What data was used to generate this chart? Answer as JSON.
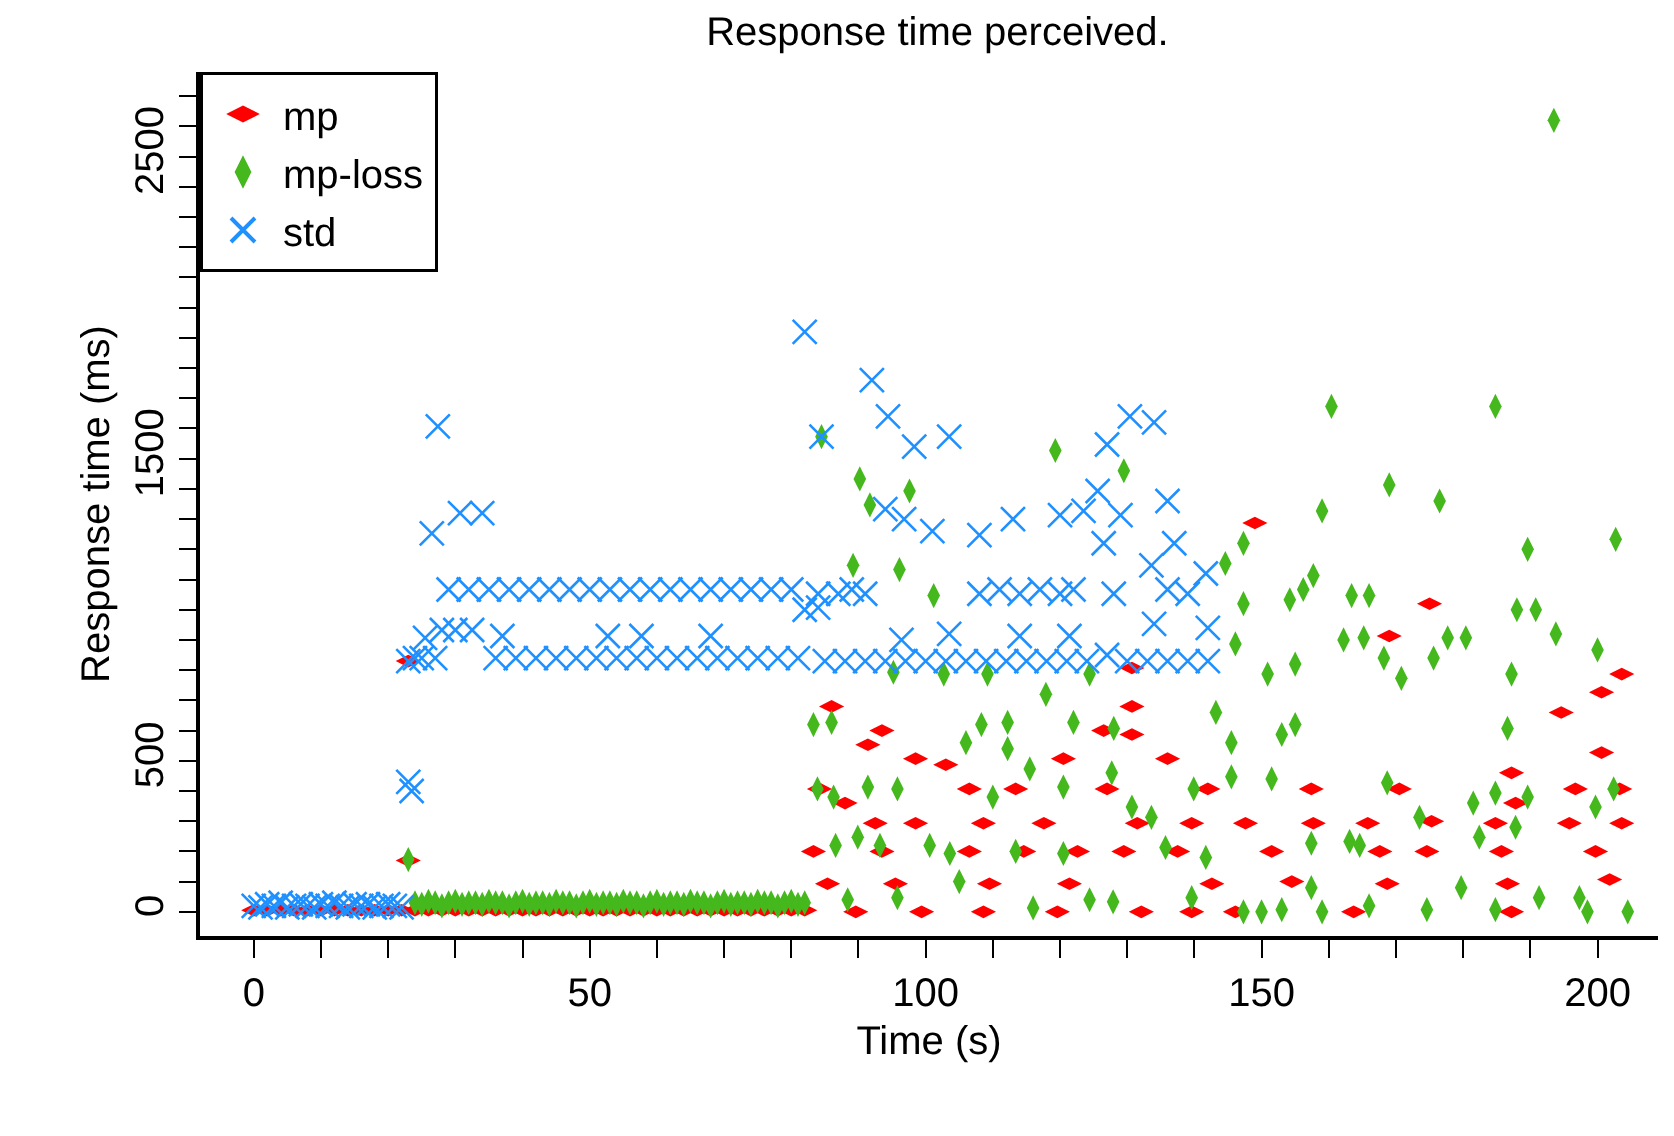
{
  "chart_data": {
    "type": "scatter",
    "title": "Response time perceived.",
    "xlabel": "Time (s)",
    "ylabel": "Response time (ms)",
    "xlim": [
      -8,
      209
    ],
    "ylim": [
      -80,
      2780
    ],
    "xticks": [
      0,
      {
        "value": 10,
        "label": null
      },
      {
        "value": 20,
        "label": null
      },
      {
        "value": 30,
        "label": null
      },
      {
        "value": 40,
        "label": null
      },
      50,
      {
        "value": 60,
        "label": null
      },
      {
        "value": 70,
        "label": null
      },
      {
        "value": 80,
        "label": null
      },
      {
        "value": 90,
        "label": null
      },
      100,
      {
        "value": 110,
        "label": null
      },
      {
        "value": 120,
        "label": null
      },
      {
        "value": 130,
        "label": null
      },
      {
        "value": 140,
        "label": null
      },
      150,
      {
        "value": 160,
        "label": null
      },
      {
        "value": 170,
        "label": null
      },
      {
        "value": 180,
        "label": null
      },
      {
        "value": 190,
        "label": null
      },
      200
    ],
    "yticks": [
      0,
      {
        "value": 100,
        "label": null
      },
      {
        "value": 200,
        "label": null
      },
      {
        "value": 300,
        "label": null
      },
      {
        "value": 400,
        "label": null
      },
      500,
      {
        "value": 600,
        "label": null
      },
      {
        "value": 700,
        "label": null
      },
      {
        "value": 800,
        "label": null
      },
      {
        "value": 900,
        "label": null
      },
      {
        "value": 1000,
        "label": null
      },
      {
        "value": 1100,
        "label": null
      },
      {
        "value": 1200,
        "label": null
      },
      {
        "value": 1300,
        "label": null
      },
      {
        "value": 1400,
        "label": null
      },
      1500,
      {
        "value": 1600,
        "label": null
      },
      {
        "value": 1700,
        "label": null
      },
      {
        "value": 1800,
        "label": null
      },
      {
        "value": 1900,
        "label": null
      },
      {
        "value": 2000,
        "label": null
      },
      {
        "value": 2100,
        "label": null
      },
      {
        "value": 2200,
        "label": null
      },
      {
        "value": 2300,
        "label": null
      },
      {
        "value": 2400,
        "label": null
      },
      2500,
      {
        "value": 2600,
        "label": null
      },
      {
        "value": 2700,
        "label": null
      }
    ],
    "legend": "top left",
    "series": [
      {
        "name": "mp",
        "color": "#ff0000",
        "marker": "diamond",
        "x": [
          0,
          2,
          4,
          6,
          8,
          10,
          12,
          14,
          16,
          18,
          20,
          22,
          23,
          23,
          24,
          26,
          28,
          30,
          32,
          34,
          36,
          38,
          40,
          42,
          44,
          46,
          48,
          50,
          52,
          54,
          56,
          58,
          60,
          62,
          64,
          66,
          68,
          70,
          72,
          74,
          76,
          78,
          80,
          82,
          149,
          175,
          169,
          130.7,
          203.6,
          200.6,
          194.6,
          200.6,
          86,
          93.5,
          91.4,
          130.7,
          130.7,
          126.5,
          98.5,
          103,
          120.5,
          136,
          187.2,
          84.2,
          106.5,
          113.4,
          127,
          142,
          157.4,
          170.5,
          196.7,
          203.3,
          187.8,
          88,
          92.5,
          98.5,
          108.6,
          117.6,
          131.5,
          139.6,
          147.6,
          157.7,
          165.8,
          175.3,
          184.8,
          195.8,
          203.6,
          83.3,
          93.5,
          106.5,
          114.6,
          122.6,
          129.5,
          137.5,
          151.5,
          167.6,
          174.6,
          185.7,
          199.7,
          85.4,
          95.5,
          109.5,
          121.4,
          142.6,
          154.5,
          168.7,
          186.6,
          201.8,
          89.6,
          99.4,
          108.6,
          119.6,
          132.1,
          139.6,
          146.1,
          163.7,
          187.2
        ],
        "values": [
          5,
          5,
          5,
          5,
          5,
          5,
          5,
          5,
          5,
          5,
          5,
          5,
          170,
          830,
          5,
          5,
          5,
          5,
          5,
          5,
          5,
          5,
          5,
          5,
          5,
          5,
          5,
          5,
          5,
          5,
          5,
          5,
          5,
          5,
          5,
          5,
          5,
          5,
          5,
          5,
          5,
          5,
          5,
          5,
          1287,
          1020,
          913,
          807,
          787,
          727,
          660,
          527,
          680,
          600,
          553,
          680,
          587,
          600,
          507,
          487,
          507,
          507,
          460,
          407,
          407,
          407,
          407,
          407,
          407,
          407,
          407,
          407,
          360,
          360,
          293,
          293,
          293,
          293,
          293,
          293,
          293,
          293,
          293,
          300,
          293,
          293,
          293,
          200,
          200,
          200,
          200,
          200,
          200,
          200,
          200,
          200,
          200,
          200,
          200,
          93,
          93,
          93,
          93,
          93,
          100,
          93,
          93,
          107,
          0,
          0,
          0,
          0,
          0,
          0,
          0,
          0,
          0
        ]
      },
      {
        "name": "mp-loss",
        "color": "#44b81c",
        "marker": "diamond",
        "x": [
          23,
          24,
          25,
          26,
          27,
          28,
          29,
          30,
          31,
          32,
          33,
          34,
          35,
          36,
          37,
          38,
          39,
          40,
          41,
          42,
          43,
          44,
          45,
          46,
          47,
          48,
          49,
          50,
          51,
          52,
          53,
          54,
          55,
          56,
          57,
          58,
          59,
          60,
          61,
          62,
          63,
          64,
          65,
          66,
          67,
          68,
          69,
          70,
          71,
          72,
          73,
          74,
          75,
          76,
          77,
          78,
          79,
          80,
          81,
          82,
          193.5,
          160.4,
          184.8,
          84.5,
          119.3,
          90.2,
          129.5,
          169,
          176.5,
          97.6,
          91.7,
          159,
          202.7,
          189.6,
          147.3,
          144.6,
          89.2,
          96.1,
          157.7,
          156.2,
          154.2,
          101.2,
          147.3,
          163.4,
          166,
          188,
          190.8,
          193.8,
          177.7,
          180.4,
          162.2,
          165.2,
          146.1,
          200,
          168.2,
          175.6,
          155,
          187.2,
          170.8,
          150.9,
          143.2,
          186.6,
          155,
          153,
          145.5,
          83.3,
          86,
          106,
          108.3,
          112.2,
          112.2,
          122,
          128,
          117.9,
          109.2,
          102.7,
          95.2,
          124.4,
          115.5,
          127.7,
          145.5,
          151.5,
          168.7,
          83.9,
          86.3,
          91.4,
          95.8,
          110,
          120.5,
          130.7,
          133.6,
          139.9,
          173.5,
          181.5,
          199.7,
          202.4,
          189.6,
          184.8,
          187.8,
          182.4,
          163.1,
          157.4,
          164.6,
          141.7,
          135.7,
          120.5,
          113.4,
          103.6,
          100.6,
          93.2,
          89.9,
          86.6,
          95.8,
          88.4,
          105,
          116,
          124.4,
          127.9,
          139.6,
          147.3,
          150,
          153,
          159,
          166,
          174.6,
          179.7,
          184.8,
          191.3,
          197.3,
          204.5,
          198.5,
          157.4
        ],
        "values": [
          173,
          30,
          25,
          35,
          30,
          20,
          30,
          35,
          25,
          30,
          30,
          25,
          35,
          30,
          30,
          20,
          30,
          35,
          25,
          30,
          30,
          25,
          35,
          30,
          30,
          20,
          30,
          35,
          25,
          30,
          30,
          25,
          35,
          30,
          30,
          20,
          30,
          35,
          25,
          30,
          30,
          25,
          35,
          30,
          30,
          20,
          30,
          35,
          25,
          30,
          30,
          25,
          35,
          30,
          30,
          20,
          30,
          35,
          25,
          30,
          2620,
          1673,
          1673,
          1573,
          1527,
          1433,
          1460,
          1413,
          1360,
          1393,
          1347,
          1327,
          1233,
          1200,
          1220,
          1153,
          1147,
          1133,
          1113,
          1067,
          1033,
          1047,
          1020,
          1047,
          1047,
          1000,
          1000,
          920,
          907,
          907,
          900,
          907,
          887,
          867,
          840,
          840,
          820,
          787,
          773,
          787,
          660,
          607,
          620,
          587,
          560,
          620,
          627,
          560,
          620,
          627,
          540,
          627,
          607,
          720,
          787,
          787,
          793,
          787,
          473,
          460,
          447,
          440,
          427,
          407,
          380,
          413,
          407,
          380,
          413,
          347,
          313,
          407,
          313,
          360,
          347,
          407,
          380,
          393,
          280,
          247,
          233,
          227,
          220,
          180,
          213,
          193,
          200,
          193,
          220,
          220,
          247,
          220,
          47,
          40,
          100,
          13,
          40,
          33,
          47,
          0,
          0,
          7,
          0,
          20,
          7,
          80,
          7,
          47,
          47,
          0,
          0,
          80
        ]
      },
      {
        "name": "std",
        "color": "#1e90ff",
        "marker": "cross",
        "x": [
          0,
          1,
          2,
          3,
          4,
          5,
          6,
          7,
          8,
          9,
          10,
          11,
          12,
          13,
          14,
          15,
          16,
          17,
          18,
          19,
          20,
          21,
          22,
          23,
          23,
          23.5,
          24,
          27.4,
          26.5,
          30.7,
          34,
          29,
          32,
          35,
          38,
          41,
          44,
          47,
          50,
          53,
          56,
          59,
          62,
          65,
          68,
          71,
          74,
          77,
          80,
          82,
          25,
          27,
          36,
          39,
          42,
          45,
          48,
          51,
          54,
          57,
          60,
          63,
          66,
          69,
          72,
          75,
          78,
          81,
          25.5,
          28,
          30,
          32.5,
          37,
          52.7,
          57.7,
          68,
          82,
          84.5,
          84,
          92,
          94.4,
          98.3,
          103.5,
          127,
          130.4,
          134,
          94,
          96.8,
          101,
          108,
          113,
          120,
          123.5,
          125.6,
          129,
          136,
          126.5,
          137,
          84,
          87,
          89,
          91,
          108,
          111,
          114,
          117,
          120,
          122,
          128,
          133.6,
          136,
          139,
          141.7,
          85,
          88,
          91,
          94,
          97,
          100,
          103,
          106,
          109,
          112,
          115,
          118,
          121,
          124,
          130,
          133,
          136,
          139,
          142,
          96.4,
          103.5,
          114,
          121.4,
          134,
          142,
          127
        ],
        "values": [
          20,
          15,
          25,
          20,
          30,
          15,
          20,
          25,
          20,
          15,
          25,
          20,
          30,
          20,
          15,
          25,
          20,
          25,
          15,
          20,
          25,
          20,
          15,
          830,
          430,
          400,
          840,
          1607,
          1253,
          1320,
          1320,
          1067,
          1067,
          1067,
          1067,
          1067,
          1067,
          1067,
          1067,
          1067,
          1067,
          1067,
          1067,
          1067,
          1067,
          1067,
          1067,
          1067,
          1067,
          1000,
          840,
          840,
          840,
          840,
          840,
          840,
          840,
          840,
          840,
          840,
          840,
          840,
          840,
          840,
          840,
          840,
          840,
          840,
          907,
          933,
          933,
          933,
          913,
          913,
          913,
          913,
          1920,
          1573,
          1007,
          1760,
          1640,
          1540,
          1573,
          1547,
          1640,
          1620,
          1333,
          1300,
          1260,
          1247,
          1300,
          1313,
          1327,
          1393,
          1313,
          1360,
          1220,
          1220,
          1053,
          1053,
          1067,
          1053,
          1053,
          1067,
          1053,
          1067,
          1053,
          1067,
          1053,
          1147,
          1067,
          1053,
          1120,
          830,
          830,
          830,
          830,
          830,
          830,
          830,
          830,
          830,
          830,
          830,
          830,
          830,
          830,
          830,
          830,
          830,
          830,
          830,
          900,
          920,
          913,
          913,
          953,
          940,
          850
        ]
      }
    ]
  }
}
